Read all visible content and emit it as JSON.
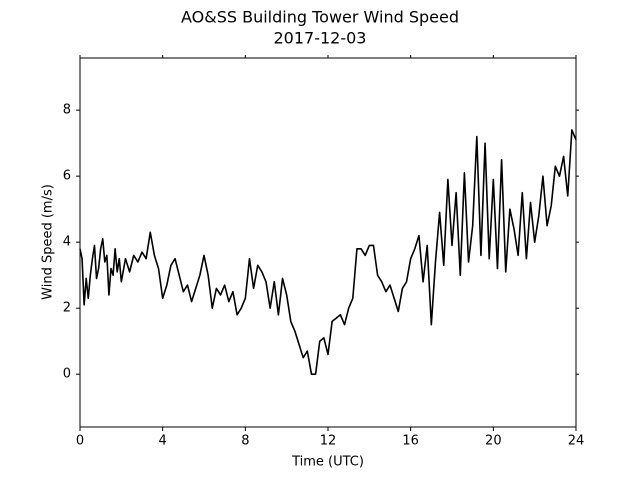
{
  "chart_data": {
    "type": "line",
    "title": "AO&SS Building Tower Wind Speed",
    "subtitle": "2017-12-03",
    "x_label": "Time (UTC)",
    "y_label": "Wind Speed (m/s)",
    "color": "#000000",
    "x": [
      0,
      0.1,
      0.2,
      0.3,
      0.4,
      0.5,
      0.6,
      0.7,
      0.8,
      0.9,
      1.0,
      1.1,
      1.2,
      1.3,
      1.4,
      1.5,
      1.6,
      1.7,
      1.8,
      1.9,
      2.0,
      2.2,
      2.4,
      2.6,
      2.8,
      3.0,
      3.2,
      3.4,
      3.6,
      3.8,
      4.0,
      4.2,
      4.4,
      4.6,
      4.8,
      5.0,
      5.2,
      5.4,
      5.6,
      5.8,
      6.0,
      6.2,
      6.4,
      6.6,
      6.8,
      7.0,
      7.2,
      7.4,
      7.6,
      7.8,
      8.0,
      8.2,
      8.4,
      8.6,
      8.8,
      9.0,
      9.2,
      9.4,
      9.6,
      9.8,
      10.0,
      10.2,
      10.4,
      10.6,
      10.8,
      11.0,
      11.2,
      11.4,
      11.6,
      11.8,
      12.0,
      12.2,
      12.4,
      12.6,
      12.8,
      13.0,
      13.2,
      13.4,
      13.6,
      13.8,
      14.0,
      14.2,
      14.4,
      14.6,
      14.8,
      15.0,
      15.2,
      15.4,
      15.6,
      15.8,
      16.0,
      16.2,
      16.4,
      16.6,
      16.8,
      17.0,
      17.2,
      17.4,
      17.6,
      17.8,
      18.0,
      18.2,
      18.4,
      18.6,
      18.8,
      19.0,
      19.2,
      19.4,
      19.6,
      19.8,
      20.0,
      20.2,
      20.4,
      20.6,
      20.8,
      21.0,
      21.2,
      21.4,
      21.6,
      21.8,
      22.0,
      22.2,
      22.4,
      22.6,
      22.8,
      23.0,
      23.2,
      23.4,
      23.6,
      23.8,
      24.0
    ],
    "values": [
      3.8,
      3.5,
      2.1,
      2.9,
      2.3,
      3.0,
      3.5,
      3.9,
      2.9,
      3.2,
      3.8,
      4.1,
      3.4,
      3.6,
      2.4,
      3.2,
      3.0,
      3.8,
      3.1,
      3.5,
      2.8,
      3.5,
      3.1,
      3.6,
      3.4,
      3.7,
      3.5,
      4.3,
      3.6,
      3.2,
      2.3,
      2.7,
      3.3,
      3.5,
      3.0,
      2.5,
      2.7,
      2.2,
      2.6,
      3.0,
      3.6,
      3.0,
      2.0,
      2.6,
      2.4,
      2.7,
      2.2,
      2.5,
      1.8,
      2.0,
      2.3,
      3.5,
      2.6,
      3.3,
      3.1,
      2.8,
      2.0,
      2.8,
      1.8,
      2.9,
      2.4,
      1.6,
      1.3,
      0.9,
      0.5,
      0.7,
      0.0,
      0.0,
      1.0,
      1.1,
      0.6,
      1.6,
      1.7,
      1.8,
      1.5,
      2.0,
      2.3,
      3.8,
      3.8,
      3.6,
      3.9,
      3.9,
      3.0,
      2.8,
      2.5,
      2.7,
      2.3,
      1.9,
      2.6,
      2.8,
      3.5,
      3.8,
      4.2,
      2.8,
      3.9,
      1.5,
      3.4,
      4.9,
      3.3,
      5.9,
      3.9,
      5.5,
      3.0,
      6.1,
      3.4,
      4.5,
      7.2,
      3.6,
      7.0,
      3.5,
      5.9,
      3.2,
      6.5,
      3.1,
      5.0,
      4.4,
      3.6,
      5.5,
      3.5,
      5.2,
      4.0,
      4.8,
      6.0,
      4.5,
      5.1,
      6.3,
      6.0,
      6.6,
      5.4,
      7.4,
      7.1
    ],
    "xlim": [
      0,
      24
    ],
    "xticks": [
      0,
      4,
      8,
      12,
      16,
      20,
      24
    ],
    "ylim": [
      -1.6,
      9.58
    ],
    "yticks": [
      0,
      2,
      4,
      6,
      8
    ],
    "grid": false
  }
}
